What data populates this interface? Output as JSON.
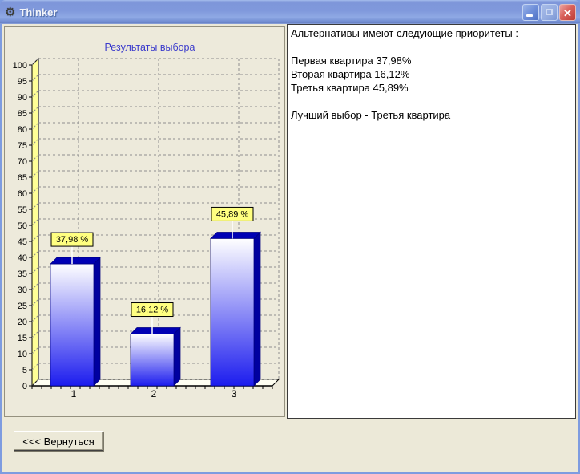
{
  "window": {
    "title": "Thinker",
    "app_icon_glyph": "⚙",
    "controls": {
      "close_glyph": "✕"
    },
    "icons": [
      "app-gear-icon",
      "minimize-icon",
      "maximize-icon",
      "close-icon"
    ]
  },
  "chart_data": {
    "type": "bar",
    "title": "Результаты выбора",
    "title_color": "#3A3ACC",
    "categories": [
      "1",
      "2",
      "3"
    ],
    "values": [
      37.98,
      16.12,
      45.89
    ],
    "bar_labels": [
      "37,98 %",
      "16,12 %",
      "45,89 %"
    ],
    "xlabel": "",
    "ylabel": "",
    "ylim": [
      0,
      100
    ],
    "ytick_step": 5,
    "grid": true,
    "legend": "none",
    "colors": {
      "bar_top": "#FFFFFF",
      "bar_bottom": "#1C1CEE",
      "bar_side": "#0000A0",
      "bar_cap": "#0000B4",
      "bar_outline": "#000080",
      "wall_left": "#FFFF96",
      "floor": "#FFFFF2",
      "mark_bg": "#FFFF80",
      "gridline": "#8F8F8F",
      "axis": "#000000"
    }
  },
  "results_panel": {
    "lines": [
      "Альтернативы имеют следующие приоритеты :",
      "",
      "Первая квартира 37,98%",
      "Вторая квартира 16,12%",
      "Третья квартира 45,89%",
      "",
      "Лучший выбор - Третья квартира"
    ]
  },
  "footer": {
    "back_button_label": "<<<  Вернуться"
  }
}
